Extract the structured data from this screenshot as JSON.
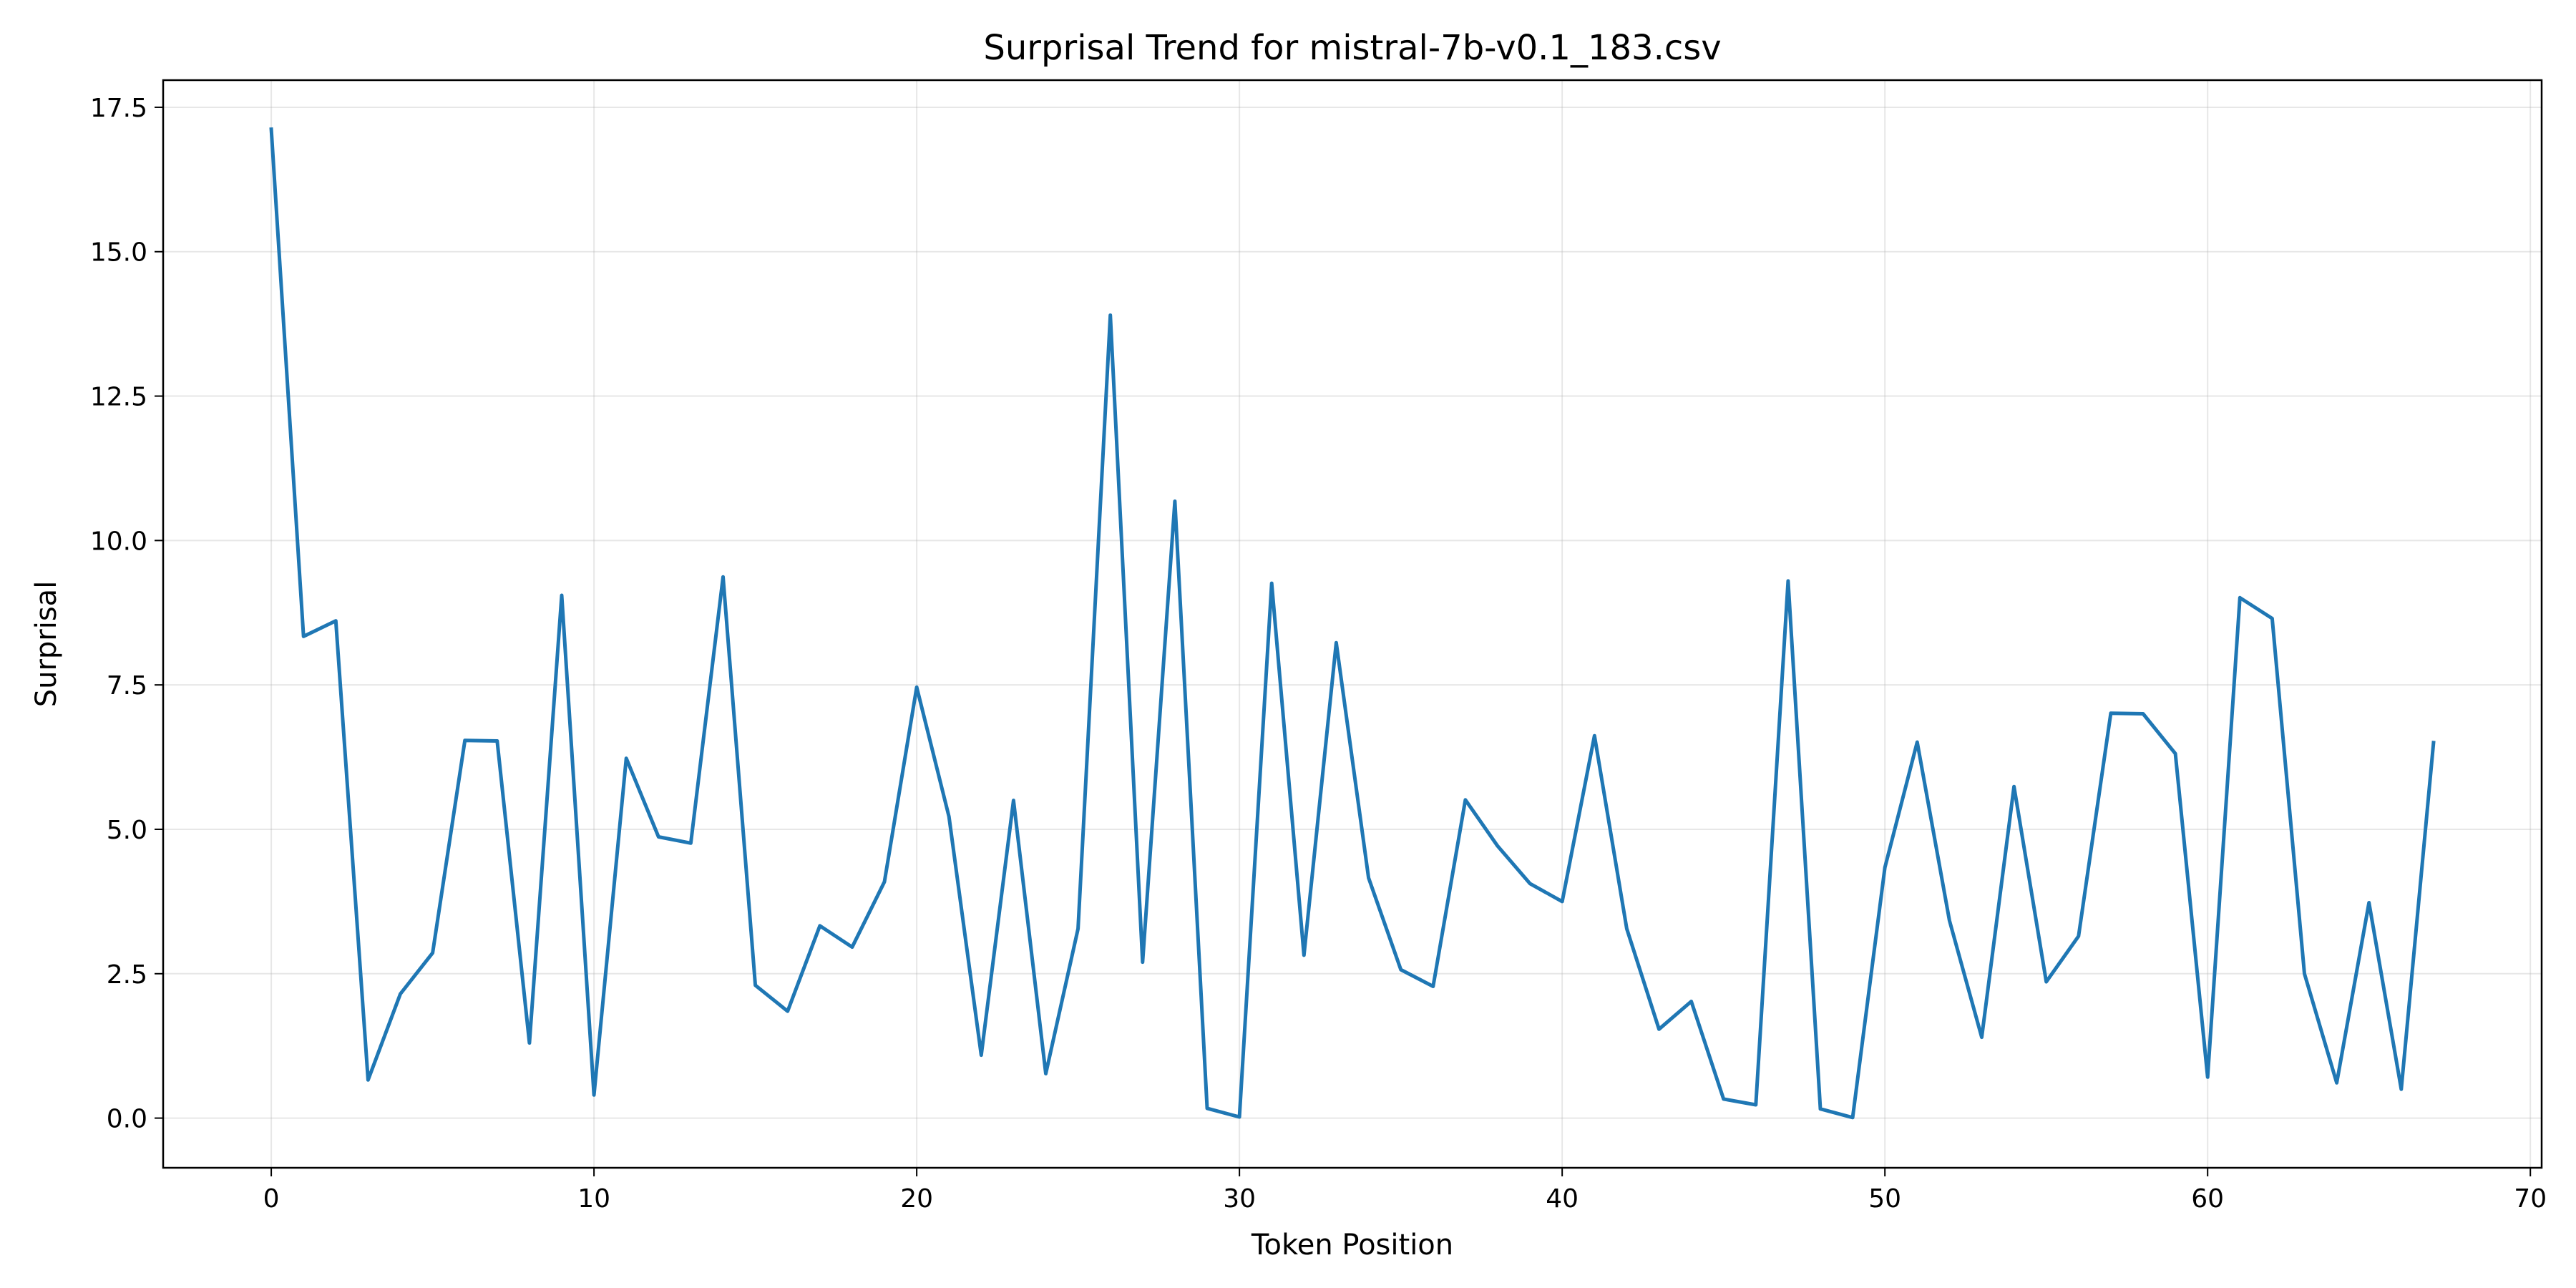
{
  "chart_data": {
    "type": "line",
    "title": "Surprisal Trend for mistral-7b-v0.1_183.csv",
    "xlabel": "Token Position",
    "ylabel": "Surprisal",
    "xlim": [
      -3.35,
      70.35
    ],
    "ylim": [
      -0.86,
      17.97
    ],
    "xticks": [
      0,
      10,
      20,
      30,
      40,
      50,
      60,
      70
    ],
    "xtick_labels": [
      "0",
      "10",
      "20",
      "30",
      "40",
      "50",
      "60",
      "70"
    ],
    "yticks": [
      0,
      2.5,
      5,
      7.5,
      10,
      12.5,
      15,
      17.5
    ],
    "ytick_labels": [
      "0.0",
      "2.5",
      "5.0",
      "7.5",
      "10.0",
      "12.5",
      "15.0",
      "17.5"
    ],
    "grid": true,
    "legend": "none",
    "series": [
      {
        "color": "#1f77b4",
        "x": [
          0,
          1,
          2,
          3,
          4,
          5,
          6,
          7,
          8,
          9,
          10,
          11,
          12,
          13,
          14,
          15,
          16,
          17,
          18,
          19,
          20,
          21,
          22,
          23,
          24,
          25,
          26,
          27,
          28,
          29,
          30,
          31,
          32,
          33,
          34,
          35,
          36,
          37,
          38,
          39,
          40,
          41,
          42,
          43,
          44,
          45,
          46,
          47,
          48,
          49,
          50,
          51,
          52,
          53,
          54,
          55,
          56,
          57,
          58,
          59,
          60,
          61,
          62,
          63,
          64,
          65,
          66,
          67
        ],
        "y": [
          17.12,
          8.34,
          8.61,
          0.66,
          2.15,
          2.86,
          6.54,
          6.53,
          1.3,
          9.05,
          0.4,
          6.23,
          4.87,
          4.76,
          9.37,
          2.3,
          1.85,
          3.33,
          2.96,
          4.09,
          7.46,
          5.22,
          1.09,
          5.5,
          0.77,
          3.28,
          13.9,
          2.7,
          10.68,
          0.17,
          0.02,
          9.26,
          2.82,
          8.23,
          4.16,
          2.57,
          2.28,
          5.51,
          4.71,
          4.06,
          3.75,
          6.62,
          3.28,
          1.54,
          2.02,
          0.33,
          0.23,
          9.3,
          0.16,
          0.01,
          4.34,
          6.51,
          3.42,
          1.4,
          5.74,
          2.36,
          3.15,
          7.01,
          7.0,
          6.31,
          0.71,
          9.01,
          8.65,
          2.5,
          0.61,
          3.73,
          0.5,
          6.5
        ]
      }
    ]
  }
}
